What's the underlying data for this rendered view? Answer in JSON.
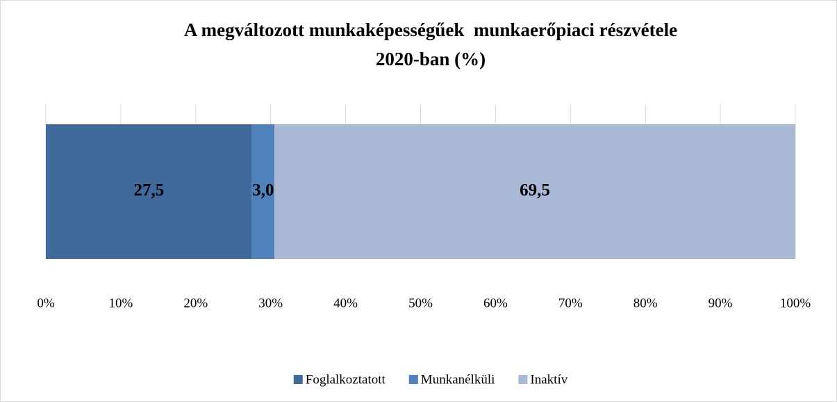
{
  "chart_data": {
    "type": "stacked-bar-horizontal",
    "title": [
      "A megváltozott munkaképességűek  munkaerőpiaci részvétele",
      "2020-ban (%)"
    ],
    "categories": [
      null
    ],
    "series": [
      {
        "name": "Foglalkoztatott",
        "color": "#416a9c",
        "values": [
          27.5
        ],
        "value_labels": [
          "27,5"
        ]
      },
      {
        "name": "Munkanélküli",
        "color": "#4f81bd",
        "values": [
          3.0
        ],
        "value_labels": [
          "3,0"
        ]
      },
      {
        "name": "Inaktív",
        "color": "#aab9d6",
        "values": [
          69.5
        ],
        "value_labels": [
          "69,5"
        ]
      }
    ],
    "xlim": [
      0,
      100
    ],
    "xticks": [
      {
        "value": 0,
        "label": "0%"
      },
      {
        "value": 10,
        "label": "10%"
      },
      {
        "value": 20,
        "label": "20%"
      },
      {
        "value": 30,
        "label": "30%"
      },
      {
        "value": 40,
        "label": "40%"
      },
      {
        "value": 50,
        "label": "50%"
      },
      {
        "value": 60,
        "label": "60%"
      },
      {
        "value": 70,
        "label": "70%"
      },
      {
        "value": 80,
        "label": "80%"
      },
      {
        "value": 90,
        "label": "90%"
      },
      {
        "value": 100,
        "label": "100%"
      }
    ],
    "grid": true,
    "legend": "bottom"
  }
}
